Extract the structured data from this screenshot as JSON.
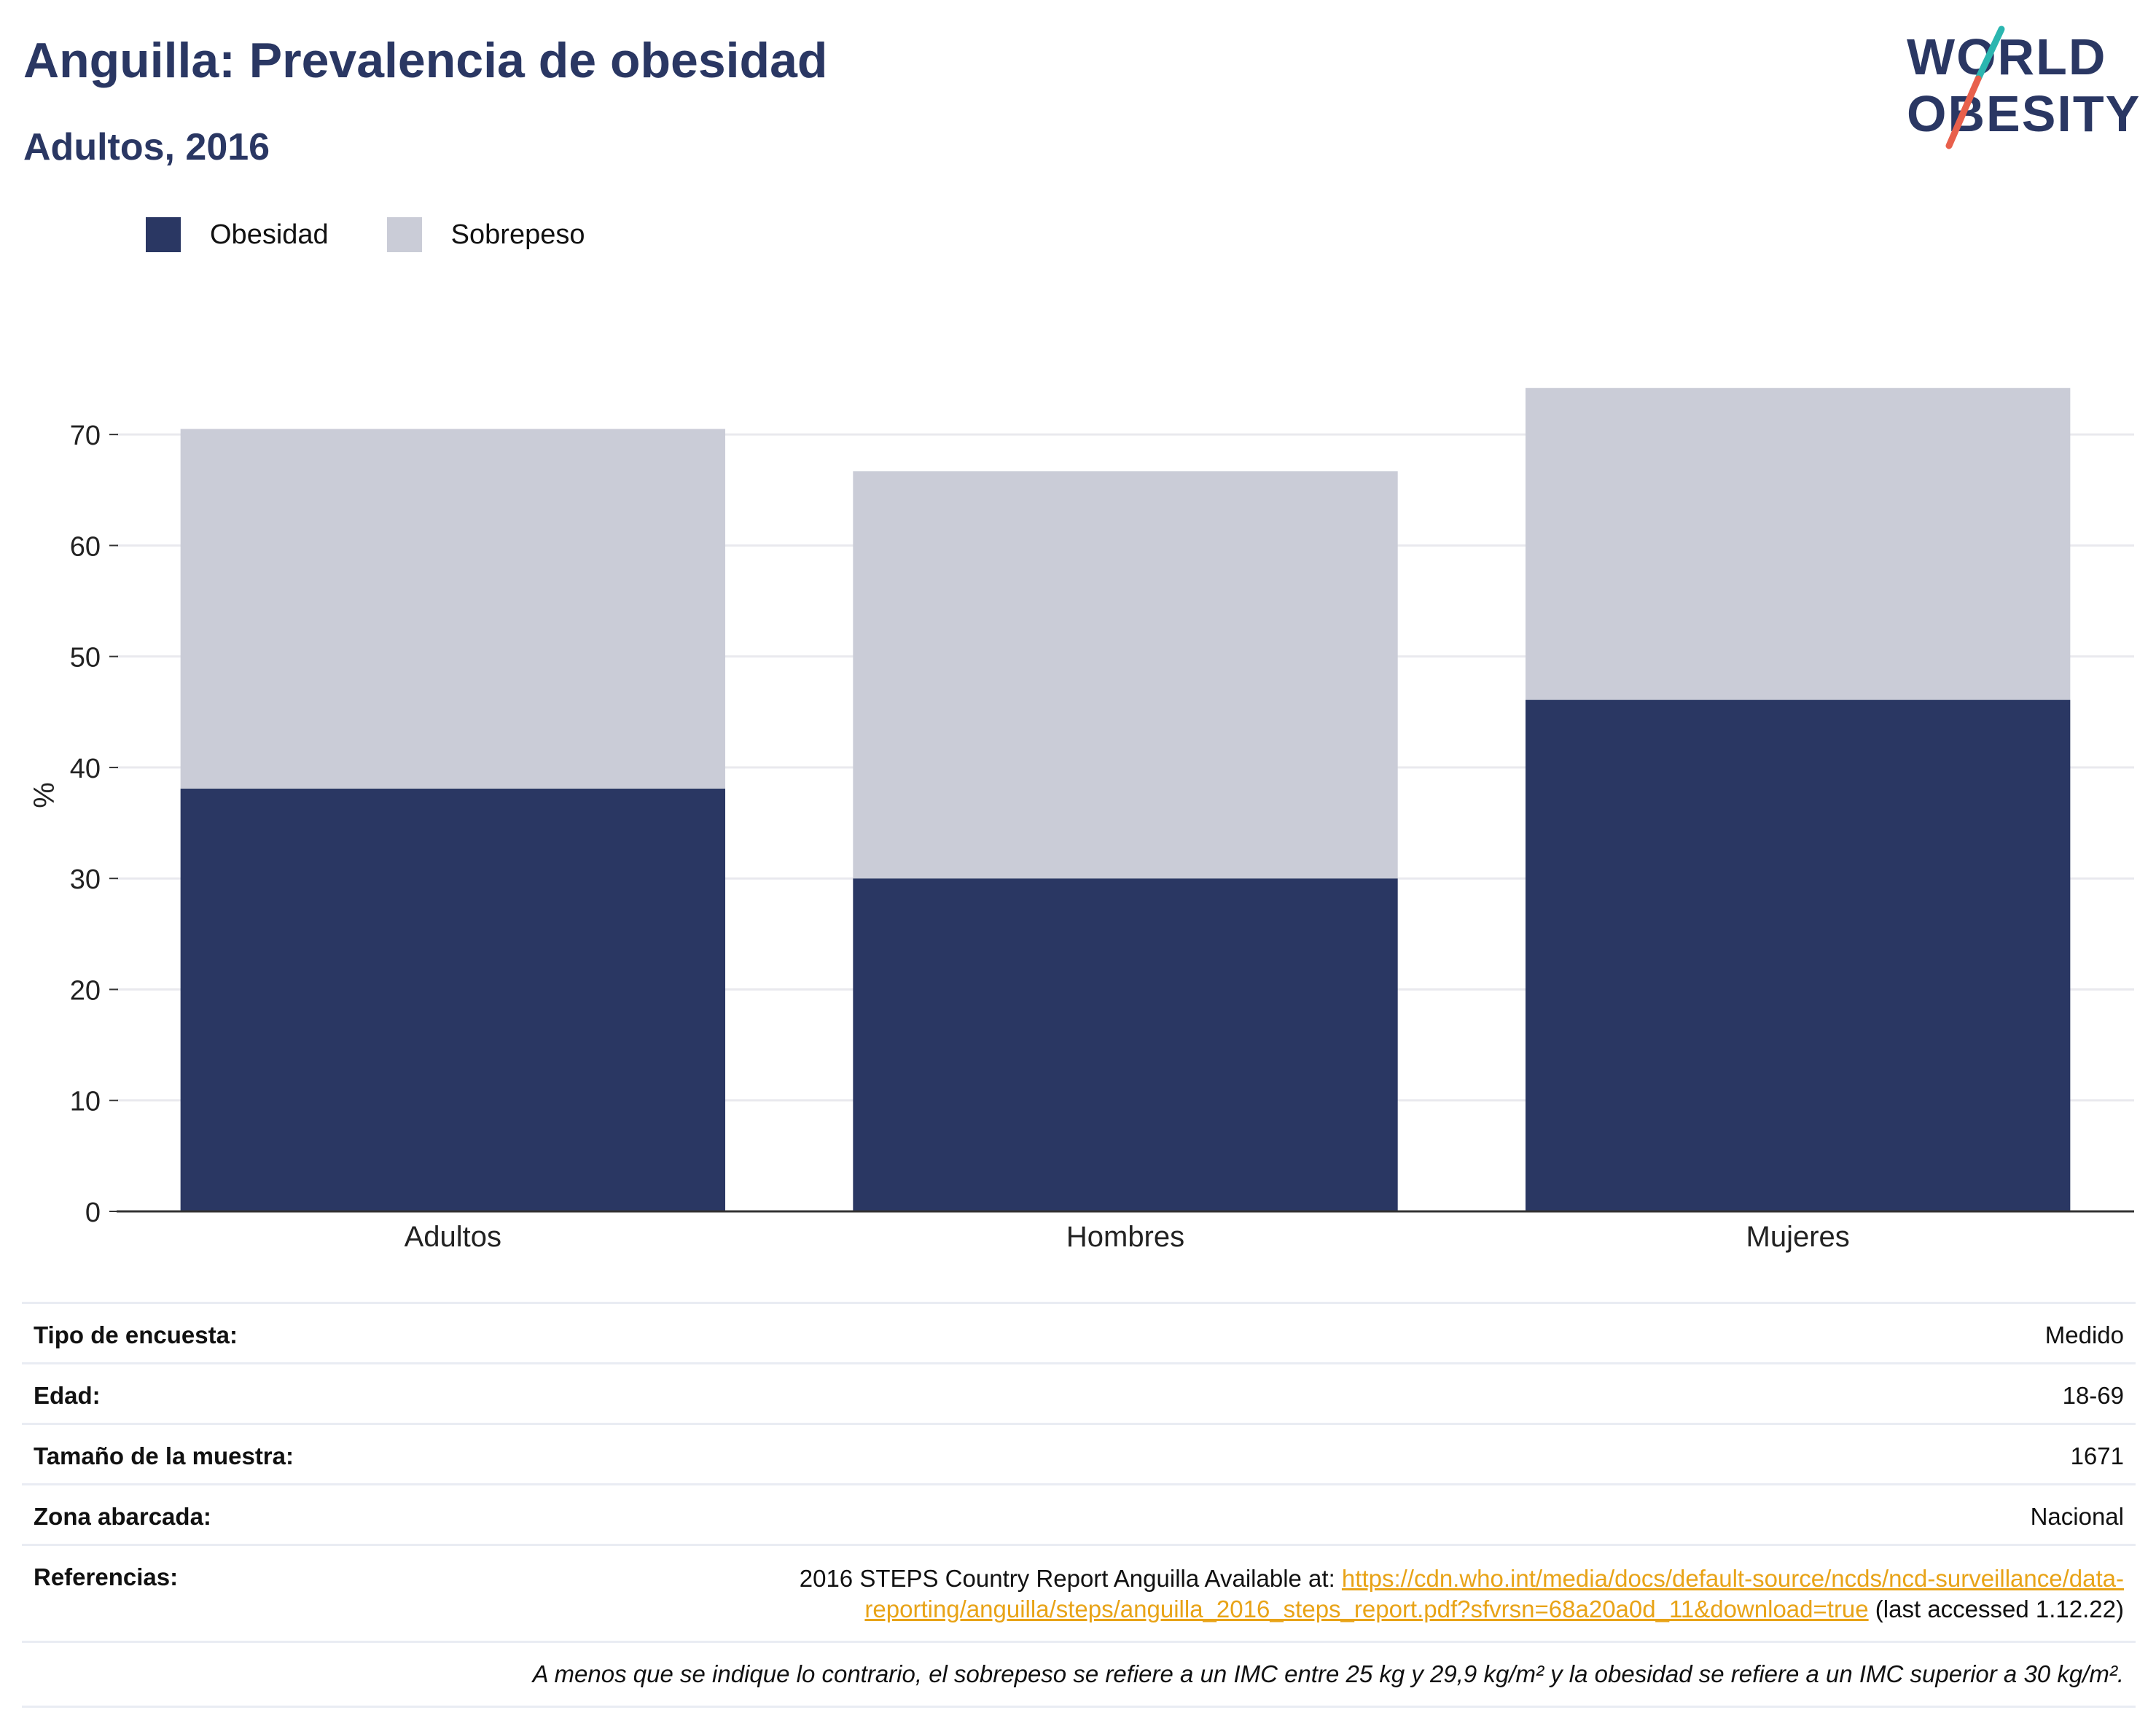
{
  "header": {
    "title": "Anguilla: Prevalencia de obesidad",
    "subtitle": "Adultos, 2016"
  },
  "logo": {
    "line1": "WORLD",
    "line2": "OBESITY",
    "colors": {
      "text": "#2a3763",
      "slash_top": "#2bb6b0",
      "slash_bottom": "#e8604c"
    }
  },
  "legend": {
    "items": [
      {
        "label": "Obesidad",
        "color": "#2a3763"
      },
      {
        "label": "Sobrepeso",
        "color": "#caccd7"
      }
    ]
  },
  "chart_data": {
    "type": "bar",
    "stacked": true,
    "categories": [
      "Adultos",
      "Hombres",
      "Mujeres"
    ],
    "series": [
      {
        "name": "Obesidad",
        "values": [
          38.1,
          30.0,
          46.1
        ],
        "color": "#2a3763"
      },
      {
        "name": "Sobrepeso",
        "values": [
          32.4,
          36.7,
          28.1
        ],
        "color": "#caccd7"
      }
    ],
    "ylabel": "%",
    "ylim": [
      0,
      75
    ],
    "yticks": [
      0,
      10,
      20,
      30,
      40,
      50,
      60,
      70
    ],
    "grid": true,
    "legend_position": "top-left"
  },
  "info": {
    "survey_type": {
      "label": "Tipo de encuesta:",
      "value": "Medido"
    },
    "age": {
      "label": "Edad:",
      "value": "18-69"
    },
    "sample_size": {
      "label": "Tamaño de la muestra:",
      "value": "1671"
    },
    "area": {
      "label": "Zona abarcada:",
      "value": "Nacional"
    },
    "references": {
      "label": "Referencias:",
      "text_before": "2016 STEPS Country Report Anguilla Available at: ",
      "link_line1": "https://cdn.who.int/media/docs/default-source/ncds/ncd-surveillance/data-",
      "link_line2": "reporting/anguilla/steps/anguilla_2016_steps_report.pdf?sfvrsn=68a20a0d_11&download=true",
      "text_after": " (last accessed 1.12.22)"
    },
    "footnote": "A menos que se indique lo contrario, el sobrepeso se refiere a un IMC entre 25 kg y 29,9 kg/m² y la obesidad se refiere a un IMC superior a 30 kg/m²."
  }
}
